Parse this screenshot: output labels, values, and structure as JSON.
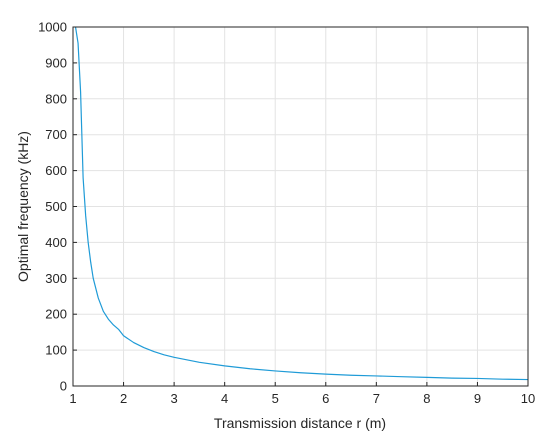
{
  "chart_data": {
    "type": "line",
    "title": "",
    "xlabel": "Transmission distance r (m)",
    "ylabel": "Optimal frequency (kHz)",
    "xlim": [
      1,
      10
    ],
    "ylim": [
      0,
      1000
    ],
    "x_ticks": [
      "1",
      "2",
      "3",
      "4",
      "5",
      "6",
      "7",
      "8",
      "9",
      "10"
    ],
    "y_ticks": [
      "0",
      "100",
      "200",
      "300",
      "400",
      "500",
      "600",
      "700",
      "800",
      "900",
      "1000"
    ],
    "grid": true,
    "series": [
      {
        "color": "#1f9bd7",
        "x": [
          1.05,
          1.1,
          1.15,
          1.2,
          1.25,
          1.3,
          1.35,
          1.4,
          1.5,
          1.6,
          1.7,
          1.8,
          1.9,
          2.0,
          2.2,
          2.4,
          2.6,
          2.8,
          3.0,
          3.5,
          4.0,
          4.5,
          5.0,
          5.5,
          6.0,
          6.5,
          7.0,
          7.5,
          8.0,
          8.5,
          9.0,
          9.5,
          10.0
        ],
        "y": [
          1000,
          955,
          820,
          580,
          475,
          400,
          345,
          300,
          245,
          208,
          186,
          170,
          158,
          140,
          121,
          107,
          96,
          87,
          80,
          66,
          56,
          48,
          42,
          37,
          33,
          30,
          28,
          26,
          24,
          22,
          21,
          19,
          18
        ]
      }
    ]
  }
}
